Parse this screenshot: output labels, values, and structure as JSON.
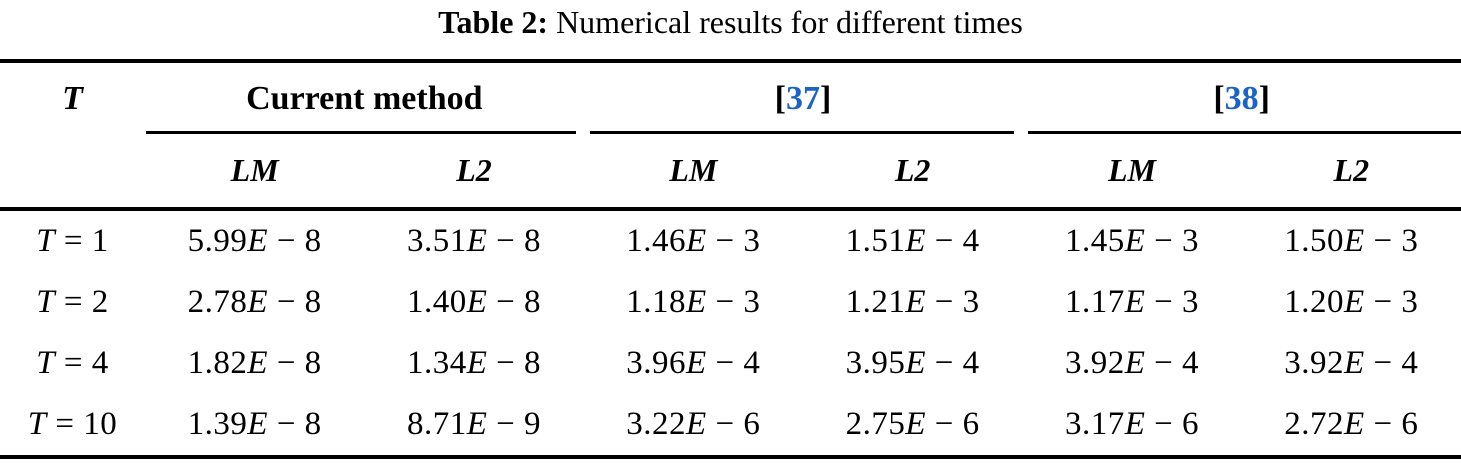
{
  "title": {
    "label": "Table 2:",
    "text": "Numerical results for different times"
  },
  "colors": {
    "citation_blue": "#1b63c8",
    "text": "#000000",
    "rule": "#000000"
  },
  "table": {
    "corner": "T",
    "groups": [
      {
        "label": "Current method"
      },
      {
        "open": "[",
        "label": "37",
        "close": "]"
      },
      {
        "open": "[",
        "label": "38",
        "close": "]"
      }
    ],
    "subheaders": [
      "LM",
      "L2",
      "LM",
      "L2",
      "LM",
      "L2"
    ],
    "rows": [
      {
        "label": "T = 1",
        "values": [
          "5.99E − 8",
          "3.51E − 8",
          "1.46E − 3",
          "1.51E − 4",
          "1.45E − 3",
          "1.50E − 3"
        ]
      },
      {
        "label": "T = 2",
        "values": [
          "2.78E − 8",
          "1.40E − 8",
          "1.18E − 3",
          "1.21E − 3",
          "1.17E − 3",
          "1.20E − 3"
        ]
      },
      {
        "label": "T = 4",
        "values": [
          "1.82E − 8",
          "1.34E − 8",
          "3.96E − 4",
          "3.95E − 4",
          "3.92E − 4",
          "3.92E − 4"
        ]
      },
      {
        "label": "T = 10",
        "values": [
          "1.39E − 8",
          "8.71E − 9",
          "3.22E − 6",
          "2.75E − 6",
          "3.17E − 6",
          "2.72E − 6"
        ]
      }
    ]
  }
}
